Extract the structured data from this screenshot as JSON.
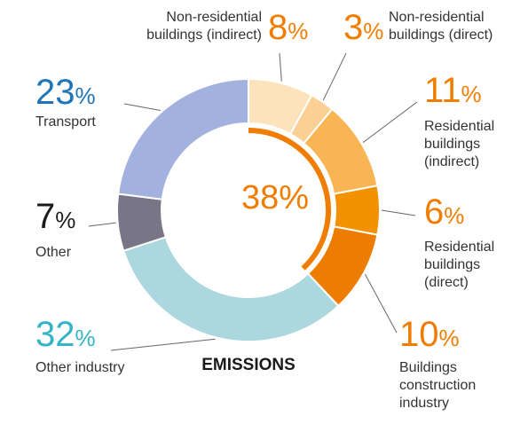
{
  "chart_data": {
    "type": "pie",
    "title": "EMISSIONS",
    "center_value": "38%",
    "center_color": "#f07d00",
    "slices": [
      {
        "label": "Non-residential buildings (indirect)",
        "value": 8,
        "value_label": "8",
        "color": "#fde3bb",
        "label_color": "#f07d00"
      },
      {
        "label": "Non-residential buildings (direct)",
        "value": 3,
        "value_label": "3",
        "color": "#fcd095",
        "label_color": "#f07d00"
      },
      {
        "label": "Residential buildings (indirect)",
        "value": 11,
        "value_label": "11",
        "color": "#f9b553",
        "label_color": "#f07d00"
      },
      {
        "label": "Residential buildings (direct)",
        "value": 6,
        "value_label": "6",
        "color": "#f39200",
        "label_color": "#f07d00"
      },
      {
        "label": "Buildings construction industry",
        "value": 10,
        "value_label": "10",
        "color": "#ed7d00",
        "label_color": "#f07d00"
      },
      {
        "label": "Other industry",
        "value": 32,
        "value_label": "32",
        "color": "#acd7de",
        "label_color": "#35b3c7"
      },
      {
        "label": "Other",
        "value": 7,
        "value_label": "7",
        "color": "#777586",
        "label_color": "#1a1a1a"
      },
      {
        "label": "Transport",
        "value": 23,
        "value_label": "23",
        "color": "#a2b1de",
        "label_color": "#1f75b8"
      }
    ],
    "label_lines": {
      "Non-residential buildings (indirect)": [
        "Non-residential",
        "buildings (indirect)"
      ],
      "Non-residential buildings (direct)": [
        "Non-residential",
        "buildings (direct)"
      ],
      "Residential buildings (indirect)": [
        "Residential",
        "buildings",
        "(indirect)"
      ],
      "Residential buildings (direct)": [
        "Residential",
        "buildings",
        "(direct)"
      ],
      "Buildings construction industry": [
        "Buildings",
        "construction",
        "industry"
      ],
      "Other industry": [
        "Other industry"
      ],
      "Other": [
        "Other"
      ],
      "Transport": [
        "Transport"
      ]
    },
    "percent_sign": "%"
  }
}
